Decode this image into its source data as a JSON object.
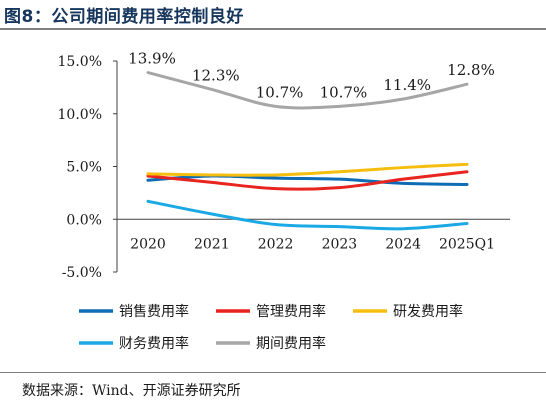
{
  "figure": {
    "title": "图8：公司期间费用率控制良好",
    "source": "数据来源：Wind、开源证券研究所"
  },
  "chart_data": {
    "type": "line",
    "categories": [
      "2020",
      "2021",
      "2022",
      "2023",
      "2024",
      "2025Q1"
    ],
    "ylim": [
      -5,
      15
    ],
    "yticks": [
      -5,
      0,
      5,
      10,
      15
    ],
    "ytick_labels": [
      "-5.0%",
      "0.0%",
      "5.0%",
      "10.0%",
      "15.0%"
    ],
    "grid": false,
    "legend_placement": "bottom",
    "series": [
      {
        "name": "销售费用率",
        "color": "#0e6bb5",
        "values": [
          3.7,
          4.1,
          3.9,
          3.8,
          3.4,
          3.3
        ]
      },
      {
        "name": "管理费用率",
        "color": "#e8241e",
        "values": [
          4.1,
          3.5,
          2.9,
          3.0,
          3.8,
          4.5
        ]
      },
      {
        "name": "研发费用率",
        "color": "#f5be0f",
        "values": [
          4.3,
          4.2,
          4.2,
          4.5,
          4.9,
          5.2
        ]
      },
      {
        "name": "财务费用率",
        "color": "#1ba9e6",
        "values": [
          1.7,
          0.5,
          -0.5,
          -0.7,
          -0.9,
          -0.4
        ]
      },
      {
        "name": "期间费用率",
        "color": "#a6a6a6",
        "values": [
          13.9,
          12.3,
          10.7,
          10.7,
          11.4,
          12.8
        ],
        "data_labels": [
          "13.9%",
          "12.3%",
          "10.7%",
          "10.7%",
          "11.4%",
          "12.8%"
        ]
      }
    ]
  }
}
